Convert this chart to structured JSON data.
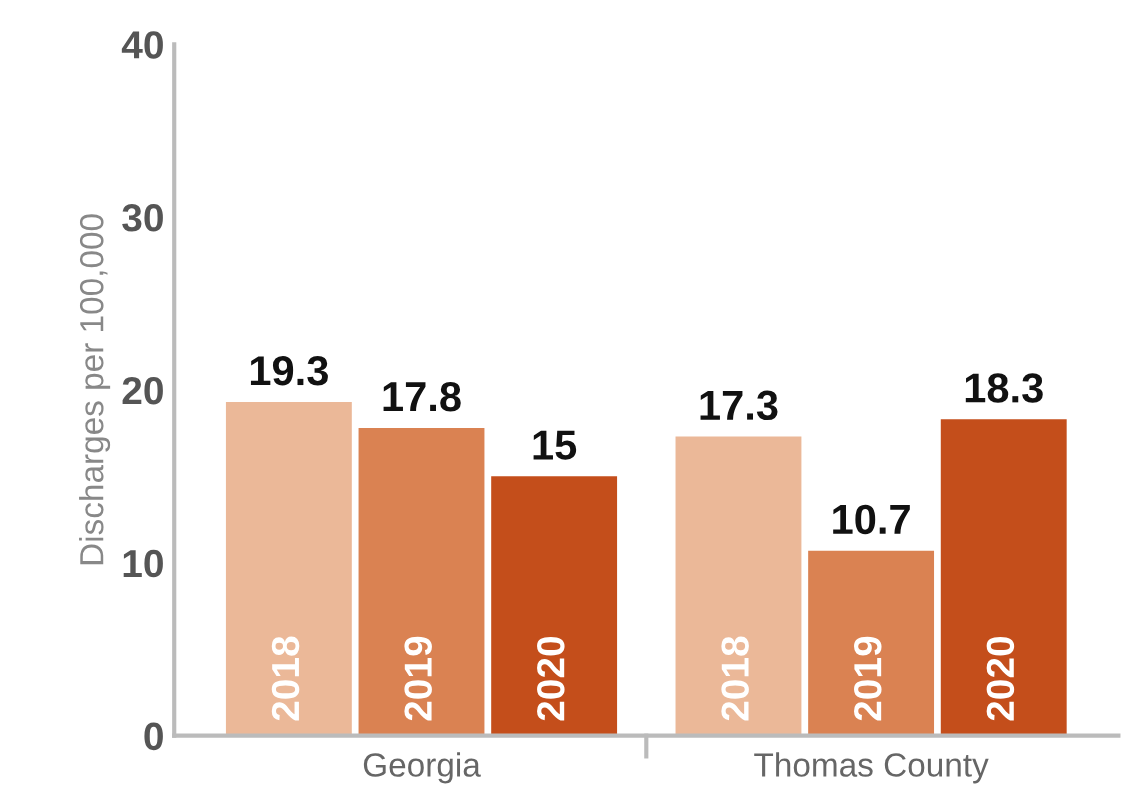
{
  "chart_data": {
    "type": "bar",
    "ylabel": "Discharges per 100,000",
    "categories": [
      "Georgia",
      "Thomas County"
    ],
    "series": [
      {
        "name": "2018",
        "color": "#ebb898",
        "values": [
          19.3,
          17.3
        ]
      },
      {
        "name": "2019",
        "color": "#da8252",
        "values": [
          17.8,
          10.7
        ]
      },
      {
        "name": "2020",
        "color": "#c44e1b",
        "values": [
          15,
          18.3
        ]
      }
    ],
    "ylim": [
      0,
      40
    ],
    "yticks": [
      0,
      10,
      20,
      30,
      40
    ],
    "grid": false,
    "legend": false,
    "data_labels": true
  }
}
